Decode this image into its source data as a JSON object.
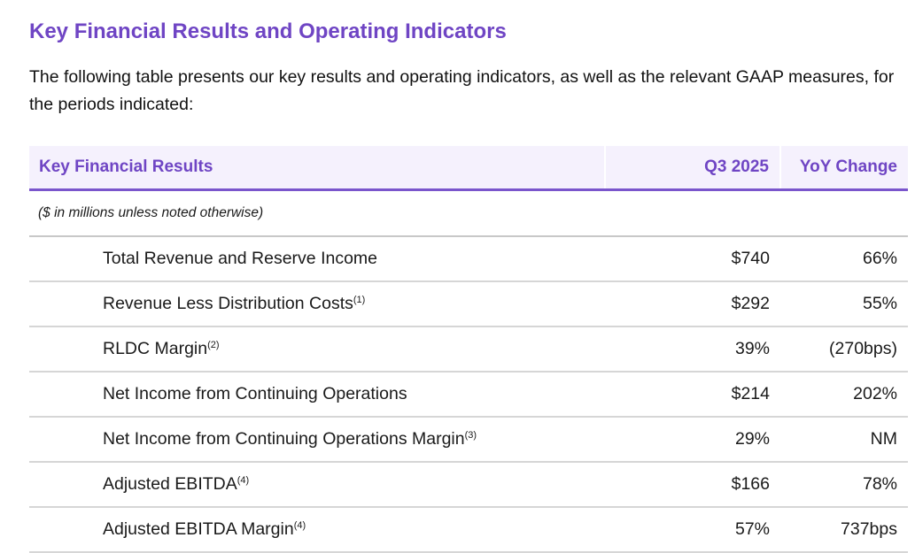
{
  "title": "Key Financial Results and Operating Indicators",
  "intro": "The following table presents our key results and operating indicators, as well as the relevant GAAP measures, for the periods indicated:",
  "table": {
    "headers": [
      "Key Financial Results",
      "Q3 2025",
      "YoY Change"
    ],
    "note": "($ in millions unless noted otherwise)",
    "rows": [
      {
        "label": "Total Revenue and Reserve Income",
        "footnote": "",
        "q3_2025": "$740",
        "yoy": "66%"
      },
      {
        "label": "Revenue Less Distribution Costs",
        "footnote": "(1)",
        "q3_2025": "$292",
        "yoy": "55%"
      },
      {
        "label": "RLDC Margin",
        "footnote": "(2)",
        "q3_2025": "39%",
        "yoy": "(270bps)"
      },
      {
        "label": "Net Income from Continuing Operations",
        "footnote": "",
        "q3_2025": "$214",
        "yoy": "202%"
      },
      {
        "label": "Net Income from Continuing Operations Margin",
        "footnote": "(3)",
        "q3_2025": "29%",
        "yoy": "NM"
      },
      {
        "label": "Adjusted EBITDA",
        "footnote": "(4)",
        "q3_2025": "$166",
        "yoy": "78%"
      },
      {
        "label": "Adjusted EBITDA Margin",
        "footnote": "(4)",
        "q3_2025": "57%",
        "yoy": "737bps"
      }
    ]
  }
}
